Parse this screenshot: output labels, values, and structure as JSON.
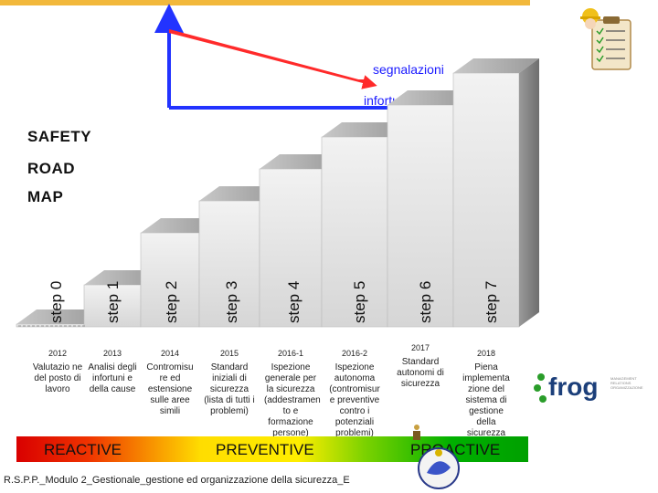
{
  "arrows": {
    "segnalazioni": "segnalazioni",
    "infortuni": "infortuni",
    "red_color": "#ff2a2a",
    "blue_color": "#2233ff"
  },
  "title_lines": [
    "SAFETY",
    "ROAD",
    "MAP"
  ],
  "steps": [
    {
      "label": "step 0",
      "year": "2012",
      "desc": "Valutazio ne del posto di lavoro"
    },
    {
      "label": "step 1",
      "year": "2013",
      "desc": "Analisi degli infortuni e della cause"
    },
    {
      "label": "step 2",
      "year": "2014",
      "desc": "Contromisu re ed estensione sulle aree simili"
    },
    {
      "label": "step 3",
      "year": "2015",
      "desc": "Standard iniziali di sicurezza (lista di tutti i problemi)"
    },
    {
      "label": "step 4",
      "year": "2016-1",
      "desc": "Ispezione generale per la sicurezza (addestramen to e formazione persone)"
    },
    {
      "label": "step 5",
      "year": "2016-2",
      "desc": "Ispezione autonoma (contromisur e preventive contro i potenziali problemi)"
    },
    {
      "label": "step 6",
      "year": "2017",
      "desc": "Standard autonomi di sicurezza"
    },
    {
      "label": "step 7",
      "year": "2018",
      "desc": "Piena implementa zione del sistema di gestione della sicurezza"
    }
  ],
  "band": {
    "reactive": "REACTIVE",
    "preventive": "PREVENTIVE",
    "proactive": "PROACTIVE"
  },
  "footer": "R.S.P.P._Modulo 2_Gestionale_gestione ed organizzazione della sicurezza_E",
  "logo": {
    "text": "frog",
    "subtext": "MANAGEMENT RELATIONS ORGANIZZAZIONE"
  },
  "icons": [
    "checklist-worker-icon",
    "hardhat-icon",
    "company-logo-icon",
    "person-icon"
  ]
}
